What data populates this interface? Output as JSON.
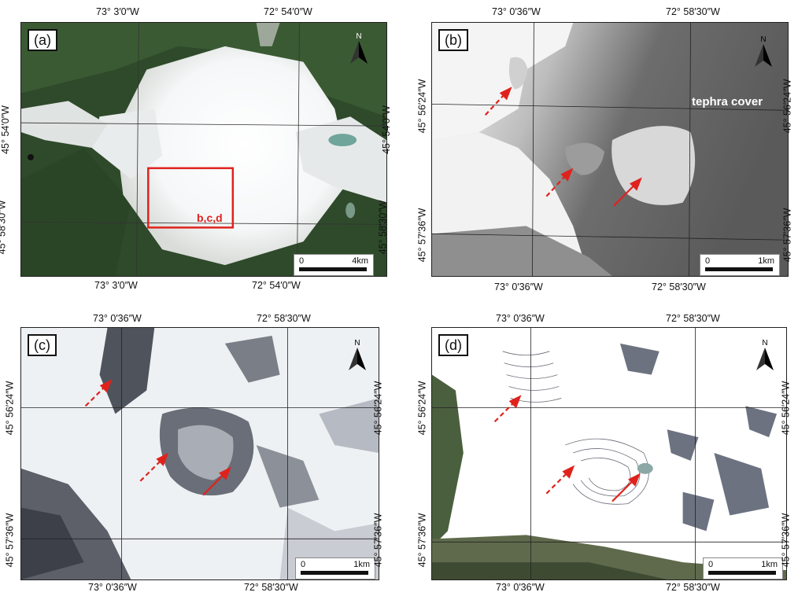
{
  "panels": [
    {
      "id": "a",
      "label": "(a)",
      "top_lon_left": "73° 3′0″W",
      "top_lon_right": "72° 54′0″W",
      "bottom_lon_left": "73° 3′0″W",
      "bottom_lon_right": "72° 54′0″W",
      "lat_top": "45° 54′0″W",
      "lat_bottom": "45° 58′30″W",
      "scale_zero": "0",
      "scale_end": "4km",
      "north": "N",
      "box_label": "b,c,d"
    },
    {
      "id": "b",
      "label": "(b)",
      "top_lon_left": "73° 0′36″W",
      "top_lon_right": "72° 58′30″W",
      "bottom_lon_left": "73° 0′36″W",
      "bottom_lon_right": "72° 58′30″W",
      "lat_top": "45° 56′24″W",
      "lat_bottom": "45° 57′36″W",
      "scale_zero": "0",
      "scale_end": "1km",
      "north": "N",
      "annotation": "tephra cover"
    },
    {
      "id": "c",
      "label": "(c)",
      "top_lon_left": "73° 0′36″W",
      "top_lon_right": "72° 58′30″W",
      "bottom_lon_left": "73° 0′36″W",
      "bottom_lon_right": "72° 58′30″W",
      "lat_top": "45° 56′24″W",
      "lat_bottom": "45° 57′36″W",
      "scale_zero": "0",
      "scale_end": "1km",
      "north": "N"
    },
    {
      "id": "d",
      "label": "(d)",
      "top_lon_left": "73° 0′36″W",
      "top_lon_right": "72° 58′30″W",
      "bottom_lon_left": "73° 0′36″W",
      "bottom_lon_right": "72° 58′30″W",
      "lat_top": "45° 56′24″W",
      "lat_bottom": "45° 57′36″W",
      "scale_zero": "0",
      "scale_end": "1km",
      "north": "N"
    }
  ],
  "colors": {
    "arrow": "#e0221c",
    "forest": "#2f4f2a",
    "ice": "#f4f6f8",
    "tephra_gray": "#5f5f5f"
  }
}
